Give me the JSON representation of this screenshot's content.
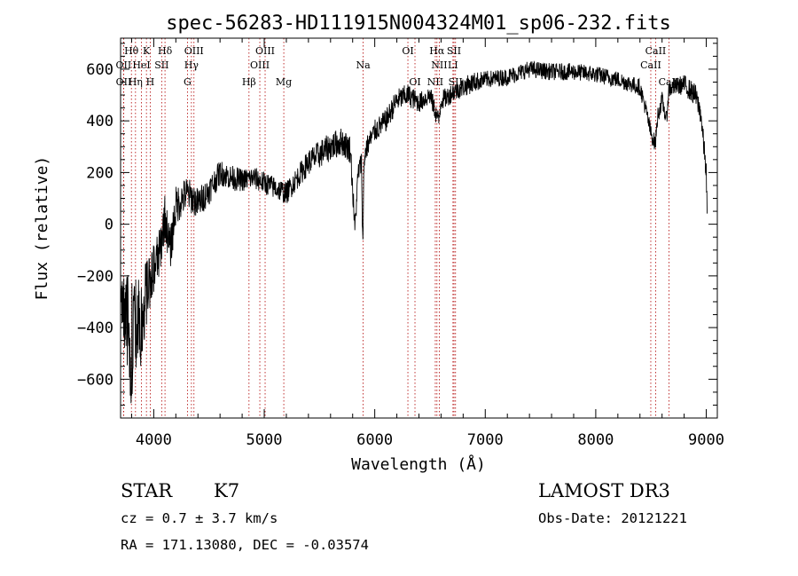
{
  "chart_data": {
    "type": "line",
    "title": "spec-56283-HD111915N004324M01_sp06-232.fits",
    "xlabel": "Wavelength (Å)",
    "ylabel": "Flux (relative)",
    "xlim": [
      3700,
      9100
    ],
    "ylim": [
      -750,
      720
    ],
    "xticks": [
      4000,
      5000,
      6000,
      7000,
      8000,
      9000
    ],
    "yticks": [
      -600,
      -400,
      -200,
      0,
      200,
      400,
      600
    ],
    "grid": false,
    "series": [
      {
        "name": "flux",
        "anchors_x": [
          3700,
          3750,
          3800,
          3850,
          3900,
          3950,
          4000,
          4050,
          4100,
          4150,
          4200,
          4300,
          4400,
          4500,
          4600,
          4700,
          4800,
          4900,
          5000,
          5100,
          5200,
          5300,
          5400,
          5500,
          5600,
          5700,
          5780,
          5820,
          5850,
          5880,
          5890,
          5895,
          5900,
          5910,
          5930,
          6000,
          6100,
          6200,
          6300,
          6400,
          6500,
          6560,
          6580,
          6600,
          6650,
          6700,
          6800,
          6900,
          7000,
          7200,
          7400,
          7600,
          7800,
          8000,
          8200,
          8400,
          8450,
          8500,
          8540,
          8560,
          8600,
          8640,
          8660,
          8700,
          8800,
          8900,
          8950,
          9000,
          9010
        ],
        "anchors_y": [
          -300,
          -380,
          -450,
          -420,
          -350,
          -250,
          -170,
          -120,
          30,
          -100,
          70,
          120,
          80,
          130,
          200,
          180,
          170,
          180,
          160,
          140,
          120,
          180,
          240,
          270,
          300,
          320,
          290,
          -20,
          200,
          240,
          -30,
          -40,
          200,
          270,
          300,
          360,
          400,
          480,
          500,
          470,
          500,
          420,
          400,
          480,
          490,
          510,
          530,
          550,
          560,
          570,
          600,
          590,
          590,
          580,
          560,
          530,
          450,
          350,
          310,
          420,
          480,
          400,
          520,
          530,
          540,
          500,
          430,
          200,
          0
        ],
        "noise": [
          60,
          180,
          240,
          200,
          150,
          120,
          100,
          90,
          80,
          75,
          70,
          60,
          55,
          50,
          45,
          45,
          40,
          40,
          40,
          40,
          40,
          40,
          45,
          50,
          50,
          50,
          50,
          40,
          40,
          40,
          40,
          40,
          40,
          40,
          40,
          40,
          40,
          40,
          40,
          35,
          35,
          35,
          35,
          35,
          35,
          35,
          35,
          35,
          30,
          30,
          30,
          30,
          30,
          30,
          30,
          30,
          30,
          30,
          30,
          30,
          30,
          30,
          30,
          30,
          35,
          40,
          40,
          40,
          40
        ]
      }
    ],
    "lines": [
      {
        "name": "Hθ",
        "x": 3798,
        "row": 1
      },
      {
        "name": "OII",
        "x": 3727,
        "row": 2
      },
      {
        "name": "OII",
        "x": 3728,
        "row": 3
      },
      {
        "name": "Hη",
        "x": 3835,
        "row": 3
      },
      {
        "name": "HeI",
        "x": 3889,
        "row": 2
      },
      {
        "name": "K",
        "x": 3934,
        "row": 1
      },
      {
        "name": "H",
        "x": 3968,
        "row": 3
      },
      {
        "name": "SII",
        "x": 4072,
        "row": 2
      },
      {
        "name": "Hδ",
        "x": 4102,
        "row": 1
      },
      {
        "name": "G",
        "x": 4305,
        "row": 3
      },
      {
        "name": "Hγ",
        "x": 4341,
        "row": 2
      },
      {
        "name": "OIII",
        "x": 4364,
        "row": 1
      },
      {
        "name": "Hβ",
        "x": 4862,
        "row": 3
      },
      {
        "name": "OIII",
        "x": 4960,
        "row": 2
      },
      {
        "name": "OIII",
        "x": 5008,
        "row": 1
      },
      {
        "name": "Mg",
        "x": 5177,
        "row": 3
      },
      {
        "name": "Na",
        "x": 5895,
        "row": 2
      },
      {
        "name": "OI",
        "x": 6300,
        "row": 1
      },
      {
        "name": "OI",
        "x": 6364,
        "row": 3
      },
      {
        "name": "NII",
        "x": 6548,
        "row": 3
      },
      {
        "name": "Hα",
        "x": 6563,
        "row": 1
      },
      {
        "name": "NII",
        "x": 6584,
        "row": 2
      },
      {
        "name": "SII",
        "x": 6717,
        "row": 1
      },
      {
        "name": "LI",
        "x": 6708,
        "row": 2
      },
      {
        "name": "SII",
        "x": 6731,
        "row": 3
      },
      {
        "name": "CaII",
        "x": 8498,
        "row": 2
      },
      {
        "name": "CaII",
        "x": 8542,
        "row": 1
      },
      {
        "name": "CaII",
        "x": 8662,
        "row": 3
      }
    ]
  },
  "info": {
    "class": "STAR",
    "subclass": "K7",
    "survey": "LAMOST DR3",
    "cz": "cz = 0.7 ± 3.7 km/s",
    "obs_date": "Obs-Date: 20121221",
    "coords": "RA = 171.13080, DEC =  -0.03574"
  }
}
